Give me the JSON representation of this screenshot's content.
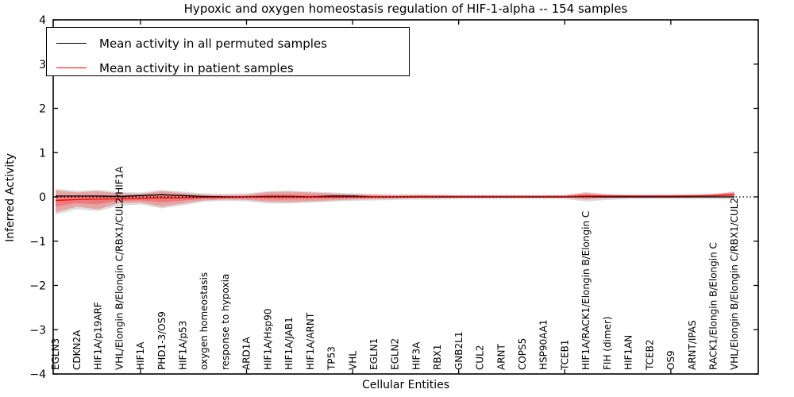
{
  "chart_data": {
    "type": "line",
    "title": "Hypoxic and oxygen homeostasis regulation of HIF-1-alpha -- 154 samples",
    "xlabel": "Cellular Entities",
    "ylabel": "Inferred Activity",
    "ylim": [
      -4,
      4
    ],
    "yticks": [
      4,
      3,
      2,
      1,
      0,
      -1,
      -2,
      -3,
      -4
    ],
    "grid": false,
    "legend_position": "upper left",
    "legend": [
      {
        "label": "Mean activity in all permuted samples",
        "color": "#000000"
      },
      {
        "label": "Mean activity in patient samples",
        "color": "#ff0000"
      }
    ],
    "zero_reference_line": 0,
    "x_major_tick_indices": [
      4,
      9,
      14,
      19,
      24,
      29
    ],
    "categories": [
      "EGLN3",
      "CDKN2A",
      "HIF1A/p19ARF",
      "VHL/Elongin B/Elongin C/RBX1/CUL2/HIF1A",
      "HIF1A",
      "PHD1-3/OS9",
      "HIF1A/p53",
      "oxygen homeostasis",
      "response to hypoxia",
      "ARD1A",
      "HIF1A/Hsp90",
      "HIF1A/JAB1",
      "HIF1A/ARNT",
      "TP53",
      "VHL",
      "EGLN1",
      "EGLN2",
      "HIF3A",
      "RBX1",
      "GNB2L1",
      "CUL2",
      "ARNT",
      "COPS5",
      "HSP90AA1",
      "TCEB1",
      "HIF1A/RACK1/Elongin B/Elongin C",
      "FIH (dimer)",
      "HIF1AN",
      "TCEB2",
      "OS9",
      "ARNT/IPAS",
      "RACK1/Elongin B/Elongin C",
      "VHL/Elongin B/Elongin C/RBX1/CUL2"
    ],
    "series": [
      {
        "name": "Mean activity in all permuted samples",
        "color": "#000000",
        "values": [
          0.02,
          0.02,
          0.02,
          0.01,
          0.03,
          0.05,
          0.03,
          0.01,
          0.0,
          0.0,
          0.01,
          0.01,
          0.0,
          0.02,
          0.02,
          0.0,
          0.0,
          0.0,
          0.0,
          0.0,
          0.0,
          0.0,
          0.0,
          0.0,
          0.0,
          0.01,
          0.0,
          0.0,
          0.0,
          0.0,
          0.0,
          0.0,
          0.0
        ]
      },
      {
        "name": "Mean activity in patient samples",
        "color": "#ff0000",
        "values": [
          -0.08,
          -0.06,
          -0.05,
          -0.04,
          -0.03,
          -0.02,
          -0.02,
          -0.01,
          -0.01,
          0.0,
          0.0,
          0.0,
          0.0,
          0.0,
          0.0,
          0.0,
          0.0,
          0.01,
          0.01,
          0.01,
          0.01,
          0.01,
          0.01,
          0.01,
          0.01,
          0.02,
          0.02,
          0.02,
          0.02,
          0.02,
          0.02,
          0.03,
          0.05
        ]
      }
    ],
    "bands": [
      {
        "name": "permuted-samples-band",
        "color": "#999999",
        "opacity": 0.33,
        "top": [
          0.18,
          0.14,
          0.16,
          0.11,
          0.1,
          0.16,
          0.12,
          0.08,
          0.07,
          0.08,
          0.13,
          0.14,
          0.12,
          0.1,
          0.08,
          0.07,
          0.06,
          0.06,
          0.05,
          0.05,
          0.05,
          0.05,
          0.05,
          0.05,
          0.05,
          0.11,
          0.07,
          0.05,
          0.05,
          0.05,
          0.06,
          0.07,
          0.1
        ],
        "bottom": [
          -0.4,
          -0.28,
          -0.32,
          -0.2,
          -0.17,
          -0.26,
          -0.19,
          -0.11,
          -0.09,
          -0.1,
          -0.15,
          -0.15,
          -0.13,
          -0.11,
          -0.09,
          -0.08,
          -0.07,
          -0.06,
          -0.06,
          -0.05,
          -0.05,
          -0.05,
          -0.05,
          -0.05,
          -0.05,
          -0.1,
          -0.07,
          -0.05,
          -0.05,
          -0.05,
          -0.05,
          -0.05,
          -0.06
        ]
      },
      {
        "name": "patient-samples-band",
        "color": "#ff0000",
        "opacity": 0.26,
        "top": [
          0.15,
          0.1,
          0.13,
          0.08,
          0.07,
          0.13,
          0.09,
          0.05,
          0.04,
          0.05,
          0.11,
          0.12,
          0.1,
          0.08,
          0.06,
          0.05,
          0.04,
          0.04,
          0.04,
          0.03,
          0.03,
          0.03,
          0.03,
          0.03,
          0.03,
          0.09,
          0.05,
          0.04,
          0.04,
          0.04,
          0.05,
          0.06,
          0.12
        ],
        "bottom": [
          -0.35,
          -0.22,
          -0.28,
          -0.14,
          -0.13,
          -0.22,
          -0.15,
          -0.08,
          -0.06,
          -0.07,
          -0.11,
          -0.12,
          -0.1,
          -0.08,
          -0.06,
          -0.05,
          -0.04,
          -0.03,
          -0.03,
          -0.02,
          -0.02,
          -0.02,
          -0.02,
          -0.02,
          -0.02,
          -0.06,
          -0.03,
          -0.02,
          -0.02,
          -0.02,
          -0.01,
          -0.01,
          0.0
        ]
      }
    ]
  }
}
